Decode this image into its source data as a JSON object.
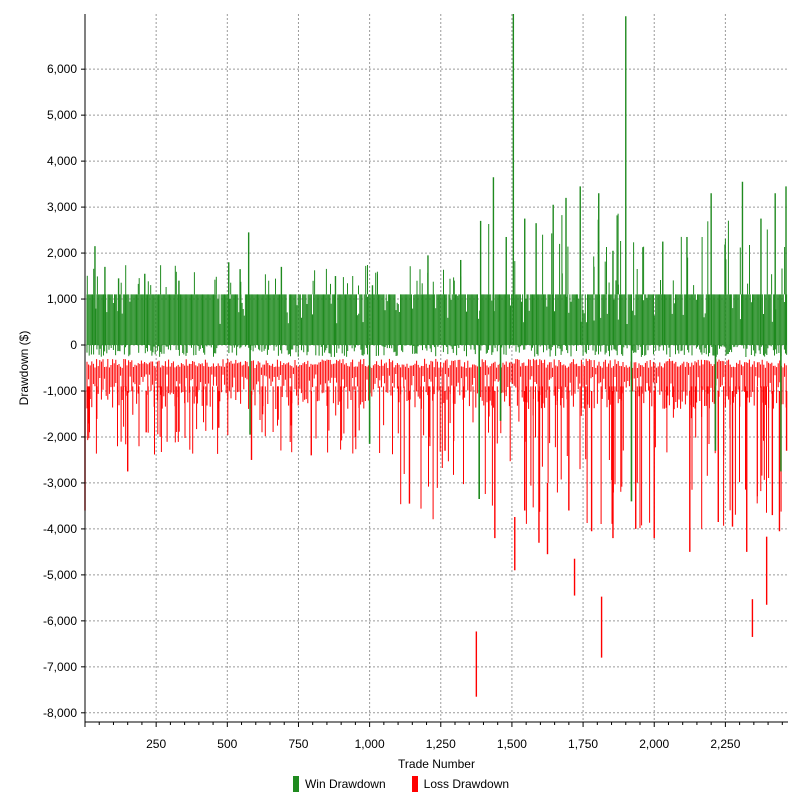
{
  "chart_data": {
    "type": "bar",
    "title": "",
    "xlabel": "Trade Number",
    "ylabel": "Drawdown ($)",
    "xlim": [
      0,
      2470
    ],
    "ylim": [
      -8200,
      7200
    ],
    "x_ticks": [
      0,
      250,
      500,
      750,
      1000,
      1250,
      1500,
      1750,
      2000,
      2250
    ],
    "x_tick_labels": [
      "",
      "250",
      "500",
      "750",
      "1,000",
      "1,250",
      "1,500",
      "1,750",
      "2,000",
      "2,250"
    ],
    "y_ticks": [
      -8000,
      -7000,
      -6000,
      -5000,
      -4000,
      -3000,
      -2000,
      -1000,
      0,
      1000,
      2000,
      3000,
      4000,
      5000,
      6000
    ],
    "y_tick_labels": [
      "-8,000",
      "-7,000",
      "-6,000",
      "-5,000",
      "-4,000",
      "-3,000",
      "-2,000",
      "-1,000",
      "0",
      "1,000",
      "2,000",
      "3,000",
      "4,000",
      "5,000",
      "6,000"
    ],
    "grid": true,
    "legend_position": "bottom-center",
    "series": [
      {
        "name": "Win Drawdown",
        "color": "#1f8a1f",
        "baseline_level": 1100,
        "points": [
          {
            "x": 35,
            "y": 2150
          },
          {
            "x": 70,
            "y": 1700
          },
          {
            "x": 118,
            "y": 1450
          },
          {
            "x": 210,
            "y": 1550
          },
          {
            "x": 330,
            "y": 1400
          },
          {
            "x": 505,
            "y": 1800
          },
          {
            "x": 545,
            "y": 1650
          },
          {
            "x": 575,
            "y": 2450
          },
          {
            "x": 690,
            "y": 1700
          },
          {
            "x": 880,
            "y": 1500
          },
          {
            "x": 1010,
            "y": 1300
          },
          {
            "x": 1205,
            "y": 1950
          },
          {
            "x": 1320,
            "y": 1850
          },
          {
            "x": 1390,
            "y": 2700
          },
          {
            "x": 1435,
            "y": 3650
          },
          {
            "x": 1480,
            "y": 2350
          },
          {
            "x": 1505,
            "y": 7200
          },
          {
            "x": 1545,
            "y": 2750
          },
          {
            "x": 1585,
            "y": 2650
          },
          {
            "x": 1645,
            "y": 3050
          },
          {
            "x": 1690,
            "y": 3200
          },
          {
            "x": 1740,
            "y": 3450
          },
          {
            "x": 1805,
            "y": 3300
          },
          {
            "x": 1855,
            "y": 2050
          },
          {
            "x": 1900,
            "y": 7150
          },
          {
            "x": 2030,
            "y": 2250
          },
          {
            "x": 2115,
            "y": 2350
          },
          {
            "x": 2200,
            "y": 3300
          },
          {
            "x": 2310,
            "y": 3550
          },
          {
            "x": 2375,
            "y": 2750
          },
          {
            "x": 2425,
            "y": 3300
          },
          {
            "x": 2463,
            "y": 3450
          }
        ],
        "dips": [
          {
            "x": 580,
            "y": -1950
          },
          {
            "x": 1000,
            "y": -2150
          },
          {
            "x": 1385,
            "y": -3350
          },
          {
            "x": 1460,
            "y": -1650
          },
          {
            "x": 1920,
            "y": -3400
          },
          {
            "x": 2215,
            "y": -2300
          },
          {
            "x": 2445,
            "y": -2750
          }
        ]
      },
      {
        "name": "Loss Drawdown",
        "color": "#ff0000",
        "typical_range": [
          -300,
          -1400
        ],
        "points": [
          {
            "x": 0,
            "y": -3600
          },
          {
            "x": 150,
            "y": -2750
          },
          {
            "x": 215,
            "y": -1900
          },
          {
            "x": 470,
            "y": -1800
          },
          {
            "x": 585,
            "y": -2500
          },
          {
            "x": 725,
            "y": -1750
          },
          {
            "x": 795,
            "y": -2400
          },
          {
            "x": 950,
            "y": -2000
          },
          {
            "x": 1140,
            "y": -3450
          },
          {
            "x": 1265,
            "y": -2300
          },
          {
            "x": 1375,
            "y": -7650
          },
          {
            "x": 1440,
            "y": -4200
          },
          {
            "x": 1510,
            "y": -4900
          },
          {
            "x": 1545,
            "y": -3600
          },
          {
            "x": 1595,
            "y": -4300
          },
          {
            "x": 1625,
            "y": -4550
          },
          {
            "x": 1700,
            "y": -3600
          },
          {
            "x": 1720,
            "y": -5450
          },
          {
            "x": 1780,
            "y": -4050
          },
          {
            "x": 1815,
            "y": -6800
          },
          {
            "x": 1855,
            "y": -4200
          },
          {
            "x": 1935,
            "y": -4000
          },
          {
            "x": 2000,
            "y": -4200
          },
          {
            "x": 2125,
            "y": -4500
          },
          {
            "x": 2225,
            "y": -3850
          },
          {
            "x": 2275,
            "y": -3950
          },
          {
            "x": 2325,
            "y": -4500
          },
          {
            "x": 2345,
            "y": -6350
          },
          {
            "x": 2395,
            "y": -5650
          },
          {
            "x": 2415,
            "y": -3700
          },
          {
            "x": 2440,
            "y": -4050
          },
          {
            "x": 2465,
            "y": -2300
          }
        ]
      }
    ]
  }
}
